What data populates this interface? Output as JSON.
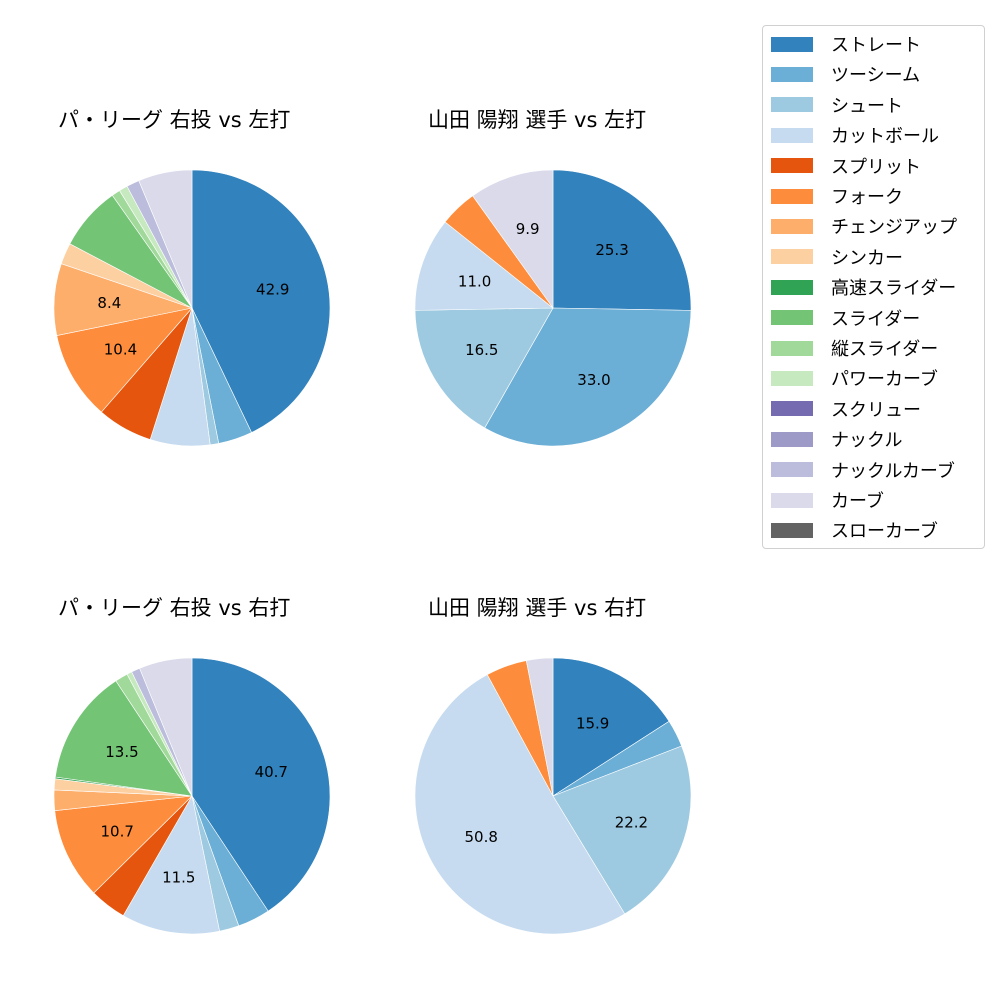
{
  "chart_data": [
    {
      "type": "pie",
      "title": "パ・リーグ 右投 vs 左打",
      "categories": [
        "ストレート",
        "ツーシーム",
        "シュート",
        "カットボール",
        "スプリット",
        "フォーク",
        "チェンジアップ",
        "シンカー",
        "スライダー",
        "縦スライダー",
        "パワーカーブ",
        "ナックルカーブ",
        "カーブ"
      ],
      "values": [
        42.9,
        4.0,
        1.0,
        7.0,
        6.5,
        10.4,
        8.4,
        2.5,
        7.5,
        1.0,
        1.0,
        1.5,
        6.3
      ],
      "labels_shown": [
        "42.9",
        "10.4",
        "8.4"
      ],
      "startangle": 90,
      "counterclock": false
    },
    {
      "type": "pie",
      "title": "山田 陽翔 選手 vs 左打",
      "categories": [
        "ストレート",
        "ツーシーム",
        "シュート",
        "カットボール",
        "フォーク",
        "カーブ"
      ],
      "values": [
        25.3,
        33.0,
        16.5,
        11.0,
        4.4,
        9.9
      ],
      "labels_shown": [
        "25.3",
        "33.0",
        "16.5",
        "11.0",
        "9.9"
      ],
      "startangle": 90,
      "counterclock": false
    },
    {
      "type": "pie",
      "title": "パ・リーグ 右投 vs 右打",
      "categories": [
        "ストレート",
        "ツーシーム",
        "シュート",
        "カットボール",
        "スプリット",
        "フォーク",
        "チェンジアップ",
        "シンカー",
        "高速スライダー",
        "スライダー",
        "縦スライダー",
        "パワーカーブ",
        "ナックルカーブ",
        "カーブ"
      ],
      "values": [
        40.7,
        3.8,
        2.3,
        11.5,
        4.3,
        10.7,
        2.4,
        1.3,
        0.2,
        13.5,
        1.5,
        0.6,
        1.0,
        6.2
      ],
      "labels_shown": [
        "40.7",
        "11.5",
        "10.7",
        "13.5"
      ],
      "startangle": 90,
      "counterclock": false
    },
    {
      "type": "pie",
      "title": "山田 陽翔 選手 vs 右打",
      "categories": [
        "ストレート",
        "ツーシーム",
        "シュート",
        "カットボール",
        "フォーク",
        "カーブ"
      ],
      "values": [
        15.9,
        3.2,
        22.2,
        50.8,
        4.8,
        3.1
      ],
      "labels_shown": [
        "15.9",
        "22.2",
        "50.8"
      ],
      "startangle": 90,
      "counterclock": false
    }
  ],
  "legend": {
    "position": "upper right",
    "items": [
      {
        "label": "ストレート",
        "color": "#3182bd"
      },
      {
        "label": "ツーシーム",
        "color": "#6baed6"
      },
      {
        "label": "シュート",
        "color": "#9ecae1"
      },
      {
        "label": "カットボール",
        "color": "#c6dbef"
      },
      {
        "label": "スプリット",
        "color": "#e6550d"
      },
      {
        "label": "フォーク",
        "color": "#fd8d3c"
      },
      {
        "label": "チェンジアップ",
        "color": "#fdae6b"
      },
      {
        "label": "シンカー",
        "color": "#fdd0a2"
      },
      {
        "label": "高速スライダー",
        "color": "#31a354"
      },
      {
        "label": "スライダー",
        "color": "#74c476"
      },
      {
        "label": "縦スライダー",
        "color": "#a1d99b"
      },
      {
        "label": "パワーカーブ",
        "color": "#c7e9c0"
      },
      {
        "label": "スクリュー",
        "color": "#756bb1"
      },
      {
        "label": "ナックル",
        "color": "#9e9ac8"
      },
      {
        "label": "ナックルカーブ",
        "color": "#bcbddc"
      },
      {
        "label": "カーブ",
        "color": "#dadaeb"
      },
      {
        "label": "スローカーブ",
        "color": "#636363"
      }
    ]
  }
}
